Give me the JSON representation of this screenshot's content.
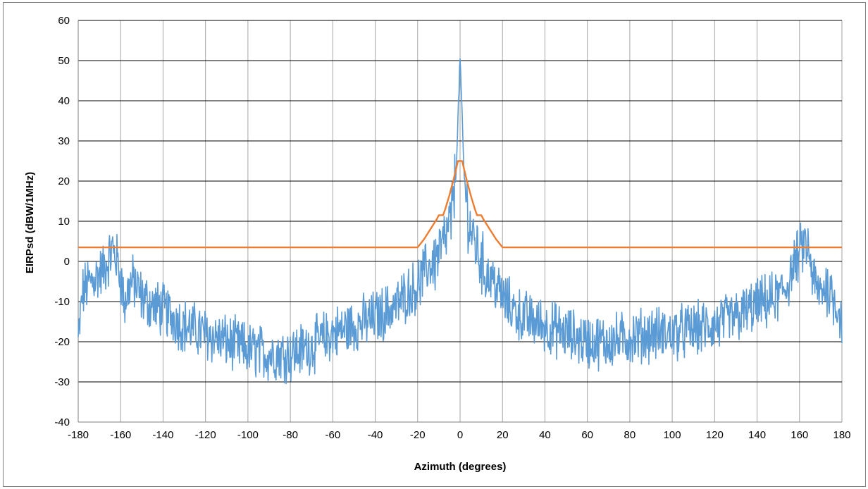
{
  "chart_data": {
    "type": "line",
    "title": "",
    "xlabel": "Azimuth (degrees)",
    "ylabel": "EIRPsd (dBW/1MHz)",
    "xlim": [
      -180,
      180
    ],
    "ylim": [
      -40,
      60
    ],
    "x_ticks": [
      -180,
      -160,
      -140,
      -120,
      -100,
      -80,
      -60,
      -40,
      -20,
      0,
      20,
      40,
      60,
      80,
      100,
      120,
      140,
      160,
      180
    ],
    "y_ticks": [
      -40,
      -30,
      -20,
      -10,
      0,
      10,
      20,
      30,
      40,
      50,
      60
    ],
    "x_tick_labels": [
      "-180",
      "-160",
      "-140",
      "-120",
      "-100",
      "-80",
      "-60",
      "-40",
      "-20",
      "0",
      "20",
      "40",
      "60",
      "80",
      "100",
      "120",
      "140",
      "160",
      "180"
    ],
    "y_tick_labels": [
      "-40",
      "-30",
      "-20",
      "-10",
      "0",
      "10",
      "20",
      "30",
      "40",
      "50",
      "60"
    ],
    "grid": true,
    "legend": "none",
    "series": [
      {
        "color": "#5b9bd5",
        "style": "noisy",
        "x": [
          -180,
          -179,
          -178,
          -176,
          -174,
          -172,
          -170,
          -168,
          -166,
          -164,
          -162,
          -160,
          -158,
          -156,
          -154,
          -150,
          -145,
          -140,
          -130,
          -120,
          -110,
          -100,
          -90,
          -80,
          -70,
          -60,
          -50,
          -40,
          -30,
          -25,
          -20,
          -16,
          -12,
          -10,
          -8,
          -6,
          -4,
          -2,
          -1,
          0,
          1,
          2,
          4,
          6,
          8,
          10,
          12,
          16,
          20,
          25,
          30,
          40,
          50,
          60,
          70,
          80,
          90,
          100,
          110,
          120,
          130,
          140,
          145,
          150,
          154,
          156,
          158,
          160,
          162,
          164,
          166,
          168,
          170,
          172,
          174,
          176,
          178,
          180
        ],
        "y": [
          -20,
          -14,
          -8,
          -6,
          -5,
          -4,
          -3,
          -2,
          0,
          3,
          1,
          -4,
          -11,
          -6,
          -5,
          -9,
          -11,
          -12,
          -16,
          -18,
          -20,
          -22,
          -23,
          -23,
          -21,
          -18,
          -16,
          -14,
          -11,
          -8,
          -6,
          -2,
          0,
          2,
          4,
          7,
          11,
          22,
          35,
          51,
          35,
          20,
          10,
          6,
          3,
          0,
          -3,
          -5,
          -9,
          -12,
          -14,
          -16,
          -18,
          -20,
          -20,
          -19,
          -18,
          -18,
          -17,
          -16,
          -14,
          -11,
          -10,
          -9,
          -6,
          -3,
          0,
          2,
          4,
          3,
          -3,
          -7,
          -8,
          -6,
          -7,
          -9,
          -11,
          -16
        ],
        "noise_amplitude": 6,
        "point_count": 1440,
        "min": -35,
        "max": 52
      },
      {
        "color": "#ed7d31",
        "style": "mask",
        "x": [
          -180,
          -20,
          -17,
          -14,
          -11,
          -10,
          -8,
          -7,
          -5,
          -3,
          -1,
          0,
          1,
          3,
          5,
          7,
          8,
          10,
          11,
          14,
          17,
          20,
          180
        ],
        "y": [
          3.5,
          3.5,
          5.5,
          8,
          10.5,
          11.5,
          11.5,
          13,
          16.5,
          20.5,
          25,
          25,
          25,
          20.5,
          16.5,
          13,
          11.5,
          11.5,
          10.5,
          8,
          5.5,
          3.5,
          3.5
        ]
      }
    ]
  }
}
